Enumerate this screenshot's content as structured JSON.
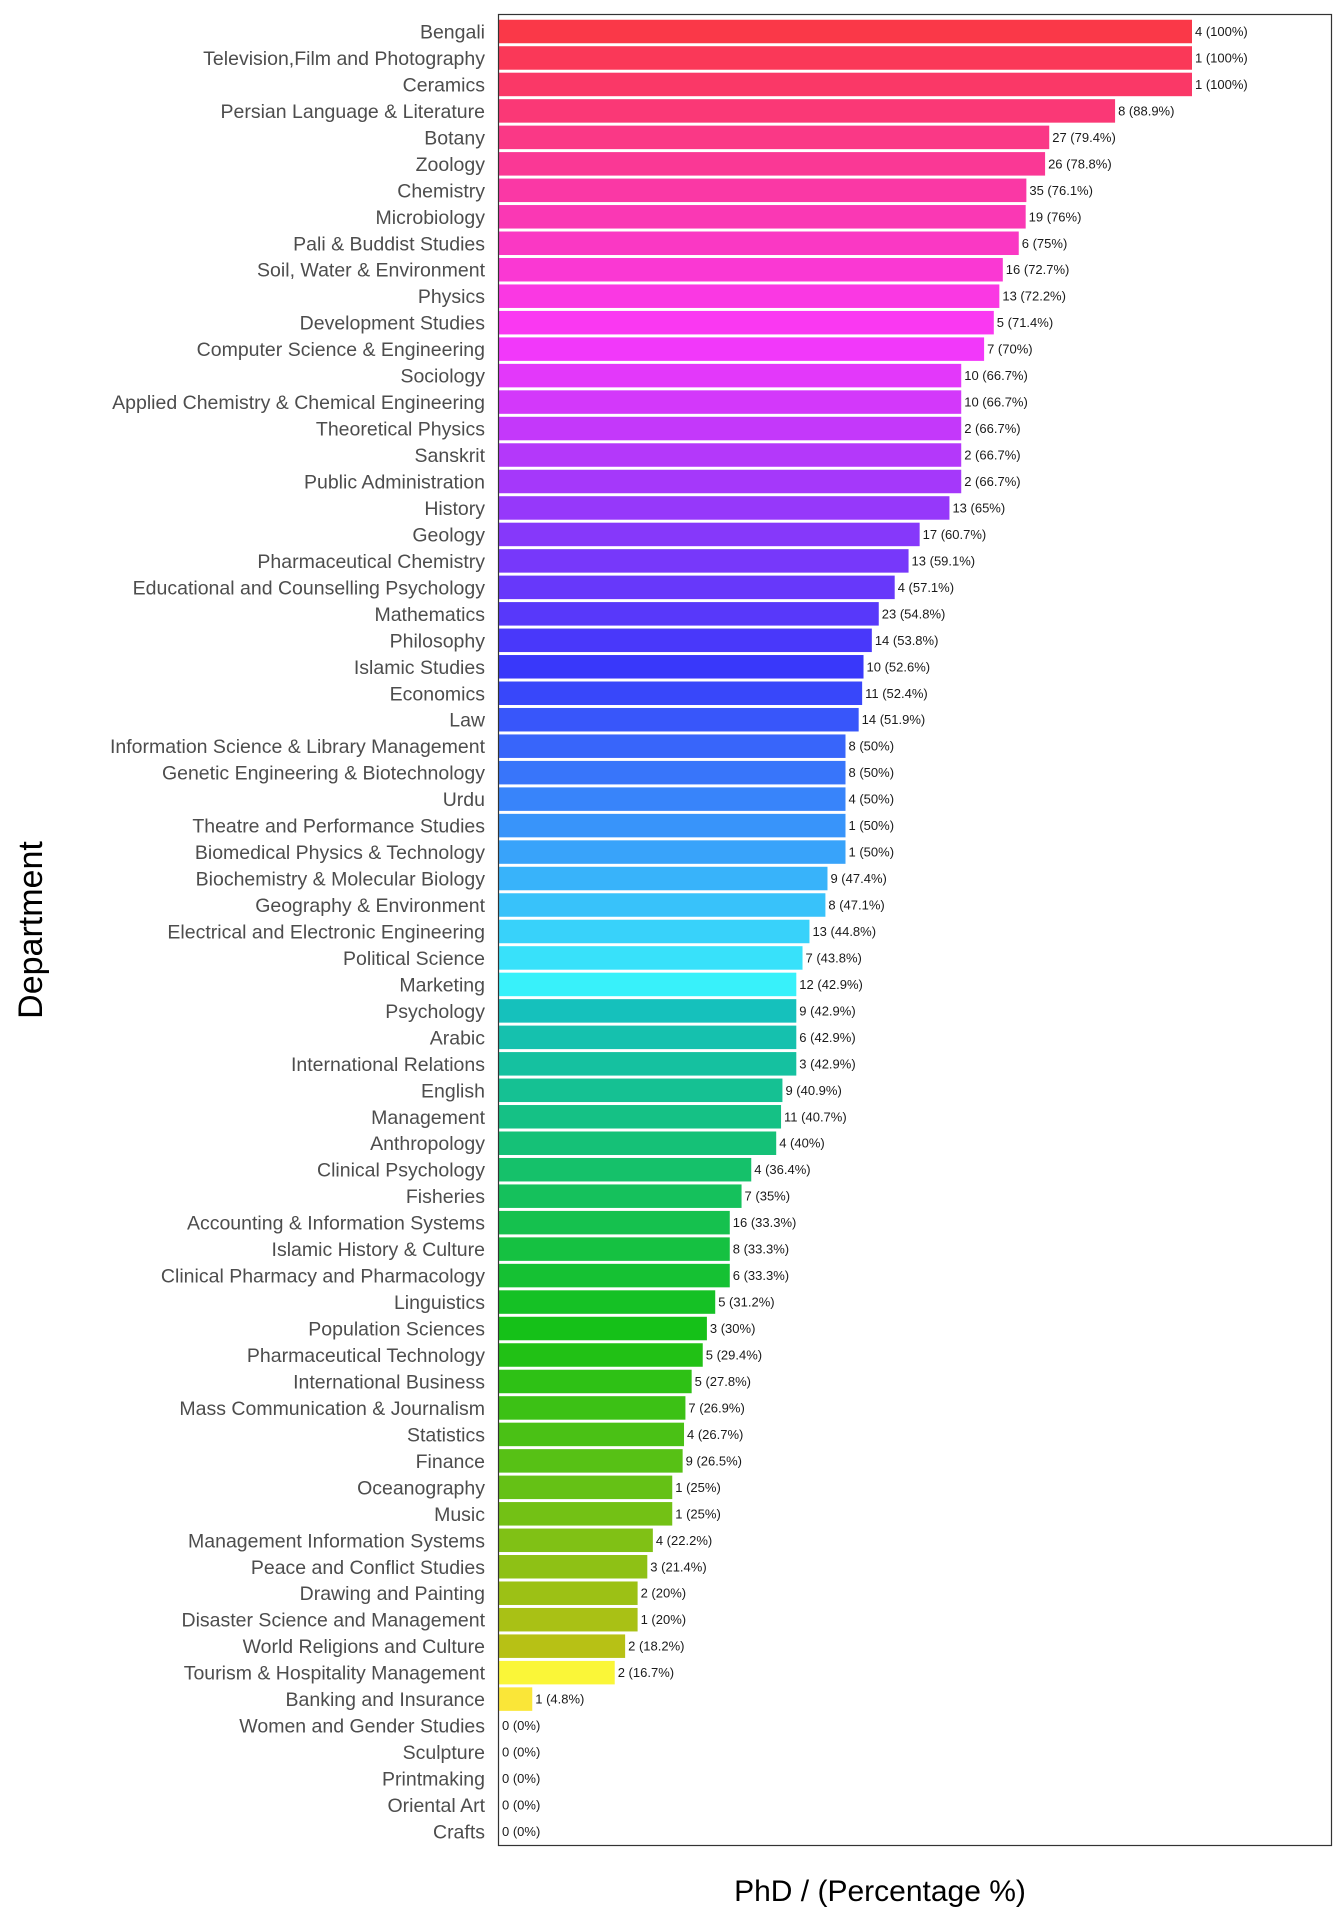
{
  "chart_data": {
    "type": "bar",
    "orientation": "horizontal",
    "xlabel": "PhD / (Percentage %)",
    "ylabel": "Department",
    "xlim": [
      0,
      100
    ],
    "grid": false,
    "legend": "none",
    "color_scale": "hue gradient from red-pink (top) through purple, blue, teal, green to orange (bottom)",
    "categories": [
      "Bengali",
      "Television,Film and Photography",
      "Ceramics",
      "Persian Language & Literature",
      "Botany",
      "Zoology",
      "Chemistry",
      "Microbiology",
      "Pali & Buddist Studies",
      "Soil, Water & Environment",
      "Physics",
      "Development Studies",
      "Computer Science & Engineering",
      "Sociology",
      "Applied Chemistry & Chemical Engineering",
      "Theoretical Physics",
      "Sanskrit",
      "Public Administration",
      "History",
      "Geology",
      "Pharmaceutical Chemistry",
      "Educational and Counselling Psychology",
      "Mathematics",
      "Philosophy",
      "Islamic Studies",
      "Economics",
      "Law",
      "Information Science & Library Management",
      "Genetic Engineering & Biotechnology",
      "Urdu",
      "Theatre and Performance Studies",
      "Biomedical Physics & Technology",
      "Biochemistry & Molecular Biology",
      "Geography & Environment",
      "Electrical and Electronic Engineering",
      "Political Science",
      "Marketing",
      "Psychology",
      "Arabic",
      "International Relations",
      "English",
      "Management",
      "Anthropology",
      "Clinical Psychology",
      "Fisheries",
      "Accounting & Information Systems",
      "Islamic History & Culture",
      "Clinical Pharmacy and Pharmacology",
      "Linguistics",
      "Population Sciences",
      "Pharmaceutical Technology",
      "International Business",
      "Mass Communication & Journalism",
      "Statistics",
      "Finance",
      "Oceanography",
      "Music",
      "Management Information Systems",
      "Peace and Conflict Studies",
      "Drawing and Painting",
      "Disaster Science and Management",
      "World Religions and Culture",
      "Tourism & Hospitality Management",
      "Banking and Insurance",
      "Women and Gender Studies",
      "Sculpture",
      "Printmaking",
      "Oriental Art",
      "Crafts"
    ],
    "values": [
      100,
      100,
      100,
      88.9,
      79.4,
      78.8,
      76.1,
      76,
      75,
      72.7,
      72.2,
      71.4,
      70,
      66.7,
      66.7,
      66.7,
      66.7,
      66.7,
      65,
      60.7,
      59.1,
      57.1,
      54.8,
      53.8,
      52.6,
      52.4,
      51.9,
      50,
      50,
      50,
      50,
      50,
      47.4,
      47.1,
      44.8,
      43.8,
      42.9,
      42.9,
      42.9,
      42.9,
      40.9,
      40.7,
      40,
      36.4,
      35,
      33.3,
      33.3,
      33.3,
      31.2,
      30,
      29.4,
      27.8,
      26.9,
      26.7,
      26.5,
      25,
      25,
      22.2,
      21.4,
      20,
      20,
      18.2,
      16.7,
      4.8,
      0,
      0,
      0,
      0,
      0
    ],
    "data_labels": [
      "4 (100%)",
      "1 (100%)",
      "1 (100%)",
      "8 (88.9%)",
      "27 (79.4%)",
      "26 (78.8%)",
      "35 (76.1%)",
      "19 (76%)",
      "6 (75%)",
      "16 (72.7%)",
      "13 (72.2%)",
      "5 (71.4%)",
      "7 (70%)",
      "10 (66.7%)",
      "10 (66.7%)",
      "2 (66.7%)",
      "2 (66.7%)",
      "2 (66.7%)",
      "13 (65%)",
      "17 (60.7%)",
      "13 (59.1%)",
      "4 (57.1%)",
      "23 (54.8%)",
      "14 (53.8%)",
      "10 (52.6%)",
      "11 (52.4%)",
      "14 (51.9%)",
      "8 (50%)",
      "8 (50%)",
      "4 (50%)",
      "1 (50%)",
      "1 (50%)",
      "9 (47.4%)",
      "8 (47.1%)",
      "13 (44.8%)",
      "7 (43.8%)",
      "12 (42.9%)",
      "9 (42.9%)",
      "6 (42.9%)",
      "3 (42.9%)",
      "9 (40.9%)",
      "11 (40.7%)",
      "4 (40%)",
      "4 (36.4%)",
      "7 (35%)",
      "16 (33.3%)",
      "8 (33.3%)",
      "6 (33.3%)",
      "5 (31.2%)",
      "3 (30%)",
      "5 (29.4%)",
      "5 (27.8%)",
      "7 (26.9%)",
      "4 (26.7%)",
      "9 (26.5%)",
      "1 (25%)",
      "1 (25%)",
      "4 (22.2%)",
      "3 (21.4%)",
      "2 (20%)",
      "1 (20%)",
      "2 (18.2%)",
      "2 (16.7%)",
      "1 (4.8%)",
      "0 (0%)",
      "0 (0%)",
      "0 (0%)",
      "0 (0%)",
      "0 (0%)"
    ]
  }
}
